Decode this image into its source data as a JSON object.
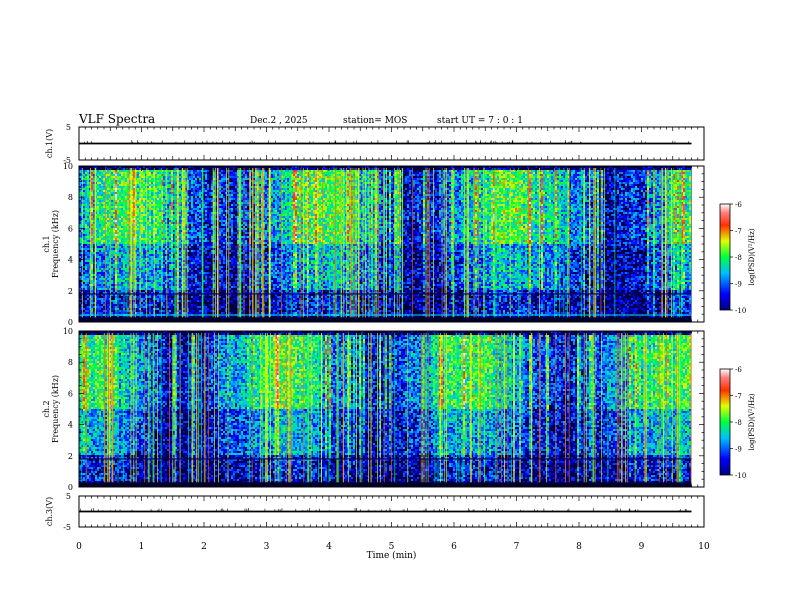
{
  "header": {
    "title": "VLF Spectra",
    "date": "Dec.2 , 2025",
    "station": "station= MOS",
    "start_ut": "start UT =  7 : 0 : 1"
  },
  "chart_data": [
    {
      "type": "line",
      "panel": "ch1-voltage",
      "ylabel": "ch.1(V)",
      "ylim": [
        -5,
        5
      ],
      "yticks": [
        "5",
        "-5"
      ],
      "level": 0,
      "xlim": [
        0,
        10
      ]
    },
    {
      "type": "heatmap",
      "panel": "ch1-spectrogram",
      "ylabel_top": "ch.1",
      "ylabel": "Frequency (kHz)",
      "ylim": [
        0,
        10
      ],
      "yticks": [
        "0",
        "2",
        "4",
        "6",
        "8",
        "10"
      ],
      "xlim": [
        0,
        10
      ],
      "data_end_min": 9.8,
      "colorbar": {
        "label": "log(PSD)(V²/Hz)",
        "ticks": [
          "-6",
          "-7",
          "-8",
          "-9",
          "-10"
        ],
        "range": [
          -10,
          -6
        ]
      }
    },
    {
      "type": "heatmap",
      "panel": "ch2-spectrogram",
      "ylabel_top": "ch.2",
      "ylabel": "Frequency (kHz)",
      "ylim": [
        0,
        10
      ],
      "yticks": [
        "0",
        "2",
        "4",
        "6",
        "8",
        "10"
      ],
      "xlim": [
        0,
        10
      ],
      "data_end_min": 9.8,
      "colorbar": {
        "label": "log(PSD)(V²/Hz)",
        "ticks": [
          "-6",
          "-7",
          "-8",
          "-9",
          "-10"
        ],
        "range": [
          -10,
          -6
        ]
      }
    },
    {
      "type": "line",
      "panel": "ch3-voltage",
      "ylabel": "ch.3(V)",
      "ylim": [
        -5,
        5
      ],
      "yticks": [
        "5",
        "-5"
      ],
      "level": 0,
      "xlim": [
        0,
        10
      ],
      "xlabel": "Time (min)",
      "xticks": [
        "0",
        "1",
        "2",
        "3",
        "4",
        "5",
        "6",
        "7",
        "8",
        "9",
        "10"
      ]
    }
  ]
}
